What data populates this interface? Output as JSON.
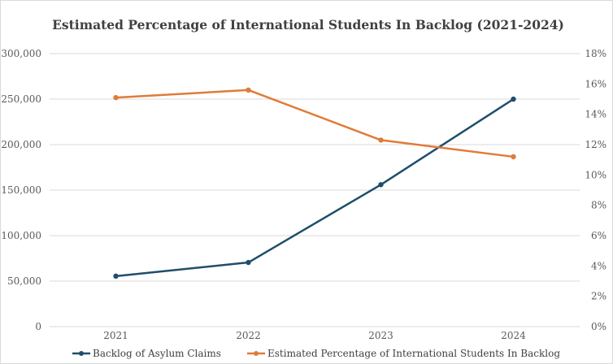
{
  "chart_data": {
    "type": "line",
    "title": "Estimated Percentage of International Students In Backlog (2021-2024)",
    "categories": [
      "2021",
      "2022",
      "2023",
      "2024"
    ],
    "series": [
      {
        "name": "Backlog of Asylum Claims",
        "axis": "left",
        "color": "#1f4e6b",
        "values": [
          55500,
          70500,
          156000,
          250000
        ]
      },
      {
        "name": "Estimated Percentage of International Students In Backlog",
        "axis": "right",
        "color": "#e07b39",
        "values": [
          15.1,
          15.6,
          12.3,
          11.2
        ]
      }
    ],
    "y_left": {
      "range": [
        0,
        300000
      ],
      "tick_labels": [
        "0",
        "50,000",
        "100,000",
        "150,000",
        "200,000",
        "250,000",
        "300,000"
      ]
    },
    "y_right": {
      "range": [
        0,
        18
      ],
      "unit": "%",
      "tick_labels": [
        "0%",
        "2%",
        "4%",
        "6%",
        "8%",
        "10%",
        "12%",
        "14%",
        "16%",
        "18%"
      ]
    },
    "grid": true,
    "legend_position": "bottom"
  }
}
